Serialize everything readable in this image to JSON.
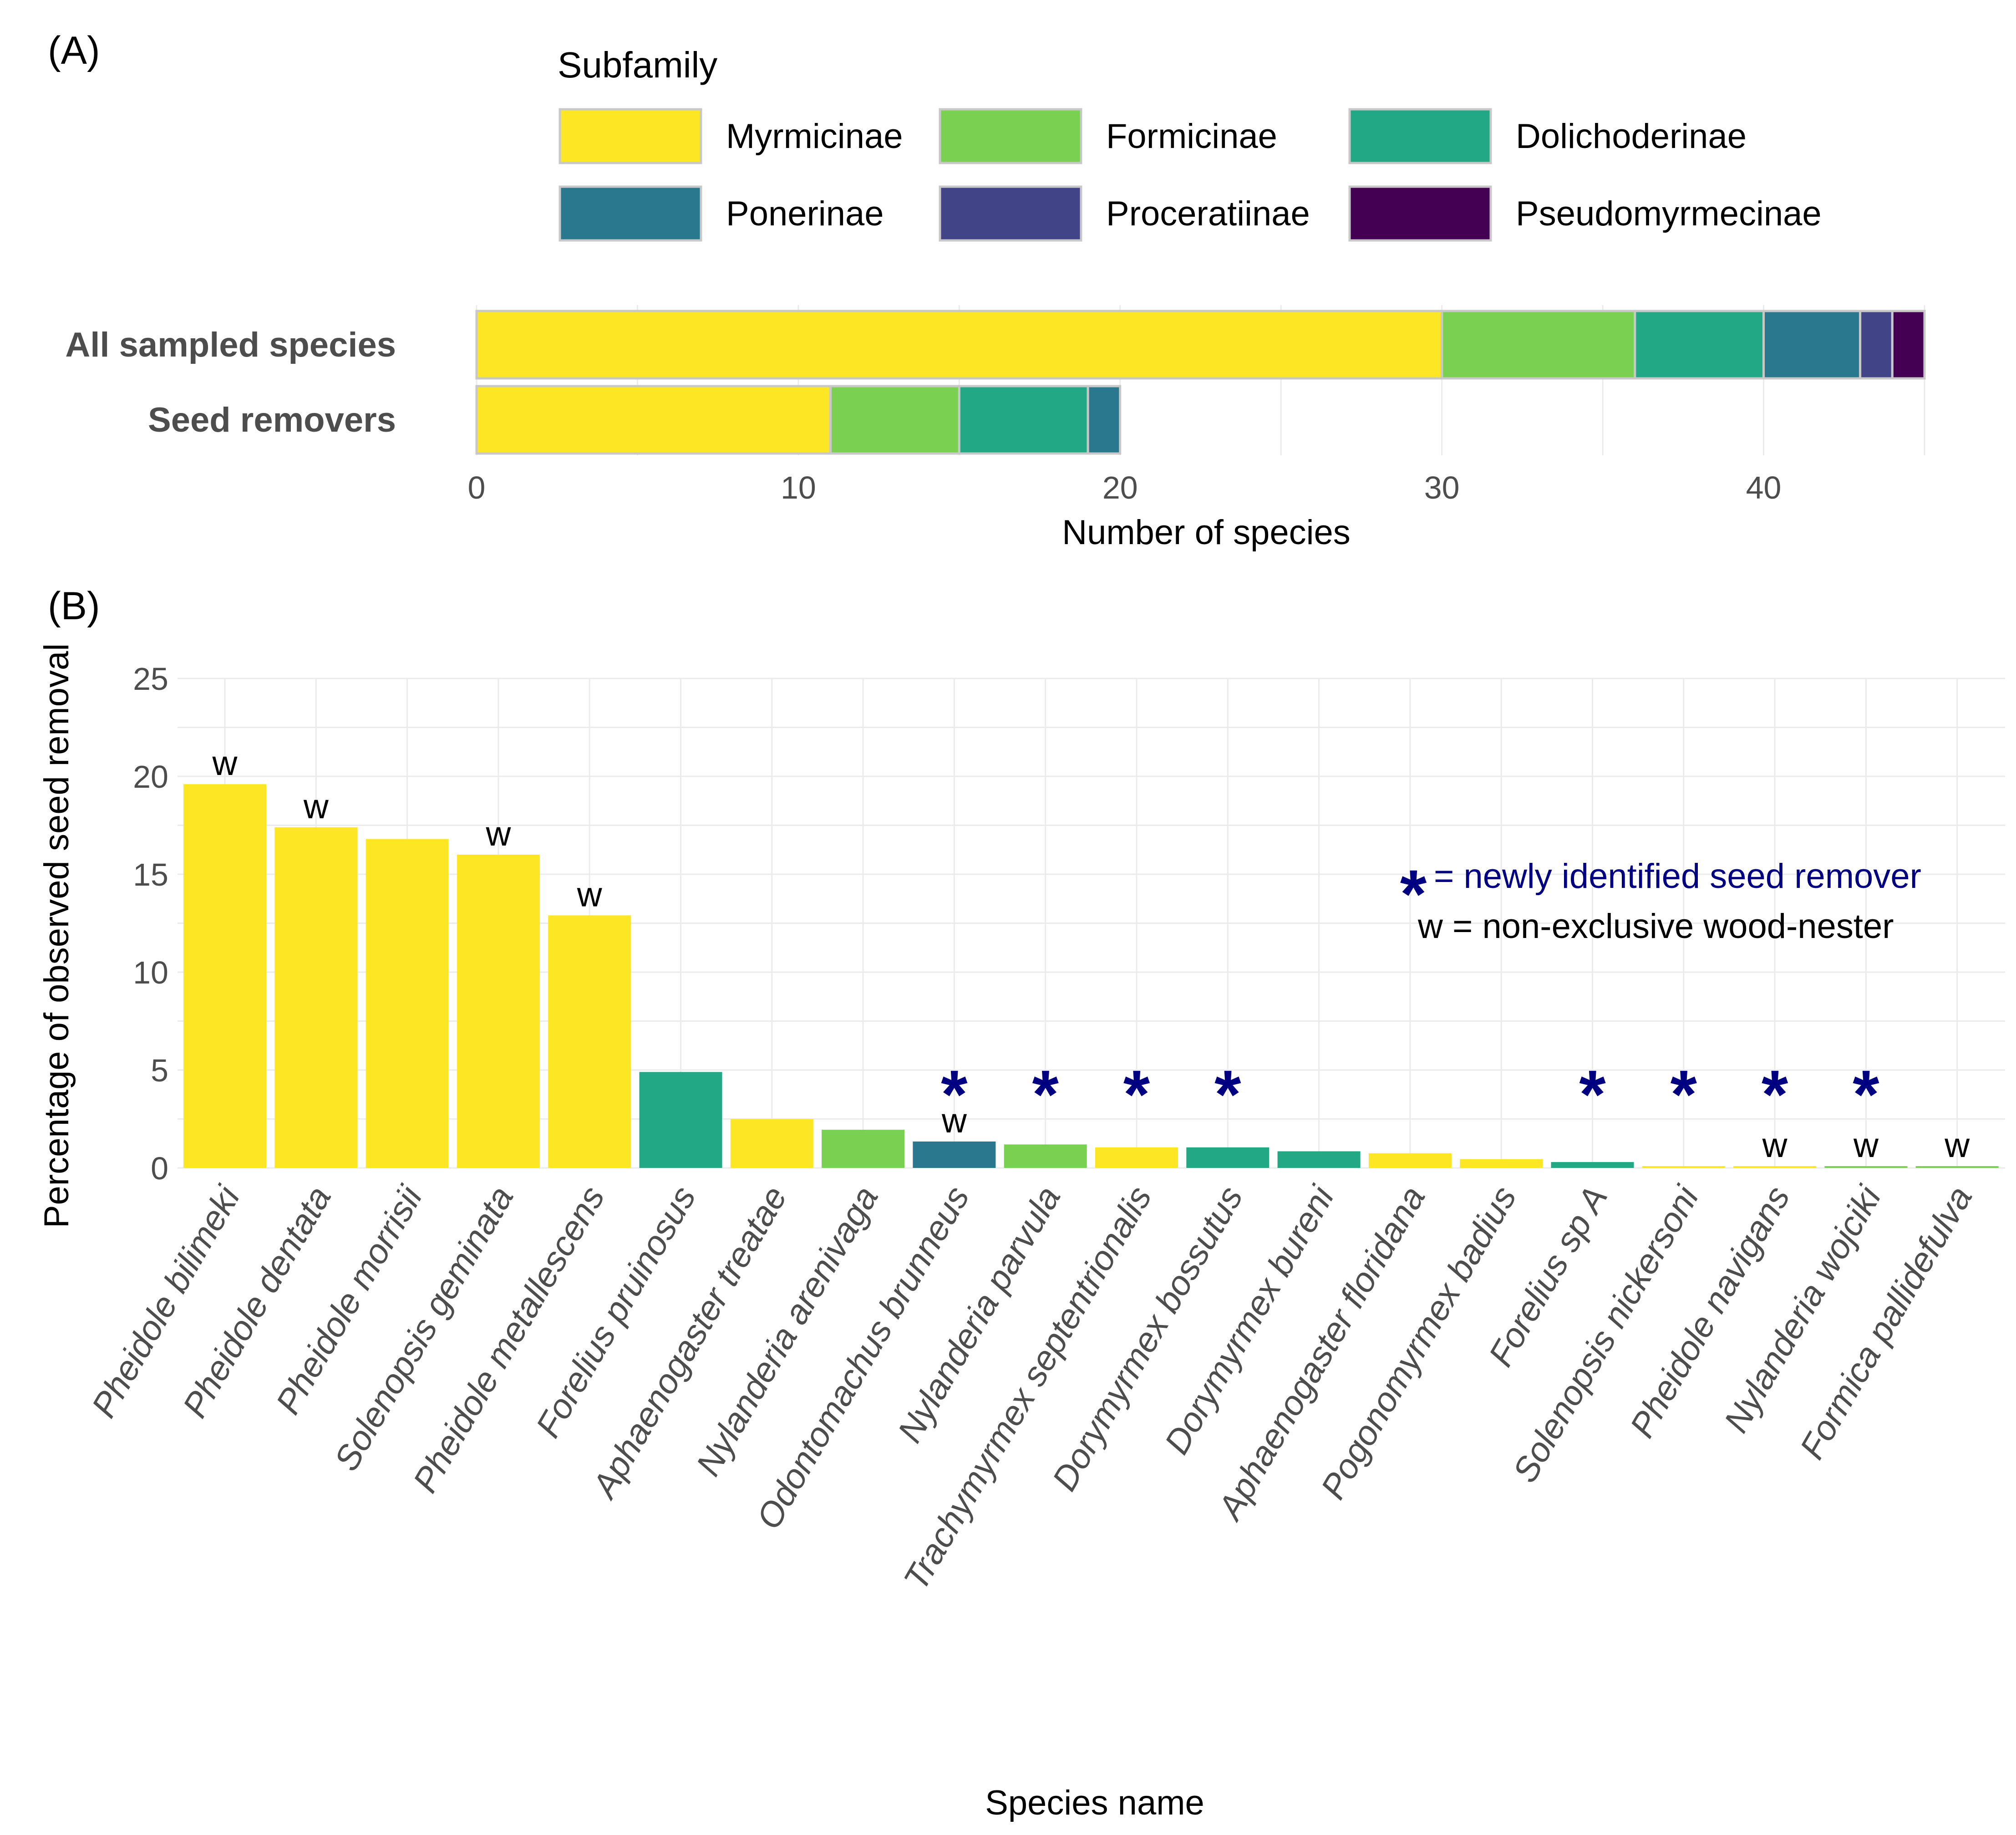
{
  "chart_data": [
    {
      "panel": "(A)",
      "type": "bar",
      "orientation": "horizontal",
      "stacked": true,
      "legend": {
        "title": "Subfamily",
        "placement": "top",
        "entries": [
          {
            "name": "Myrmicinae",
            "color": "#FDE725"
          },
          {
            "name": "Formicinae",
            "color": "#7AD151"
          },
          {
            "name": "Dolichoderinae",
            "color": "#22A884"
          },
          {
            "name": "Ponerinae",
            "color": "#2A788E"
          },
          {
            "name": "Proceratiinae",
            "color": "#414487"
          },
          {
            "name": "Pseudomyrmecinae",
            "color": "#440154"
          }
        ]
      },
      "categories": [
        "All sampled species",
        "Seed removers"
      ],
      "series": [
        {
          "name": "Myrmicinae",
          "values": [
            30,
            11
          ]
        },
        {
          "name": "Formicinae",
          "values": [
            6,
            4
          ]
        },
        {
          "name": "Dolichoderinae",
          "values": [
            4,
            4
          ]
        },
        {
          "name": "Ponerinae",
          "values": [
            3,
            1
          ]
        },
        {
          "name": "Proceratiinae",
          "values": [
            1,
            0
          ]
        },
        {
          "name": "Pseudomyrmecinae",
          "values": [
            1,
            0
          ]
        }
      ],
      "xlabel": "Number of species",
      "ylabel": "",
      "xlim": [
        0,
        45
      ],
      "xticks": [
        0,
        10,
        20,
        30,
        40
      ],
      "grid": true
    },
    {
      "panel": "(B)",
      "type": "bar",
      "categories": [
        "Pheidole bilimeki",
        "Pheidole dentata",
        "Pheidole morrisii",
        "Solenopsis geminata",
        "Pheidole metallescens",
        "Forelius pruinosus",
        "Aphaenogaster treatae",
        "Nylanderia arenivaga",
        "Odontomachus brunneus",
        "Nylanderia parvula",
        "Trachymyrmex septentrionalis",
        "Dorymyrmex bossutus",
        "Dorymyrmex bureni",
        "Aphaenogaster floridana",
        "Pogonomyrmex badius",
        "Forelius sp A",
        "Solenopsis nickersoni",
        "Pheidole navigans",
        "Nylanderia wojciki",
        "Formica pallidefulva"
      ],
      "values": [
        19.6,
        17.4,
        16.8,
        16.0,
        12.9,
        4.9,
        2.5,
        1.95,
        1.35,
        1.2,
        1.05,
        1.05,
        0.85,
        0.75,
        0.45,
        0.3,
        0.05,
        0.05,
        0.05,
        0.05
      ],
      "subfamily": [
        "Myrmicinae",
        "Myrmicinae",
        "Myrmicinae",
        "Myrmicinae",
        "Myrmicinae",
        "Dolichoderinae",
        "Myrmicinae",
        "Formicinae",
        "Ponerinae",
        "Formicinae",
        "Myrmicinae",
        "Dolichoderinae",
        "Dolichoderinae",
        "Myrmicinae",
        "Myrmicinae",
        "Dolichoderinae",
        "Myrmicinae",
        "Myrmicinae",
        "Formicinae",
        "Formicinae"
      ],
      "wood_nester": [
        true,
        true,
        false,
        true,
        true,
        false,
        false,
        false,
        true,
        false,
        false,
        false,
        false,
        false,
        false,
        false,
        false,
        true,
        true,
        true
      ],
      "newly_identified": [
        false,
        false,
        false,
        false,
        false,
        false,
        false,
        false,
        true,
        true,
        true,
        true,
        false,
        false,
        false,
        true,
        true,
        true,
        true,
        false
      ],
      "title": "",
      "xlabel": "Species name",
      "ylabel": "Percentage of observed seed removal",
      "ylim": [
        0,
        25
      ],
      "yticks": [
        0,
        5,
        10,
        15,
        20,
        25
      ],
      "annotations": {
        "wood_marker": "w",
        "new_marker": "*",
        "new_note": "= newly identified seed remover",
        "wood_note": "w = non-exclusive wood-nester"
      }
    }
  ]
}
